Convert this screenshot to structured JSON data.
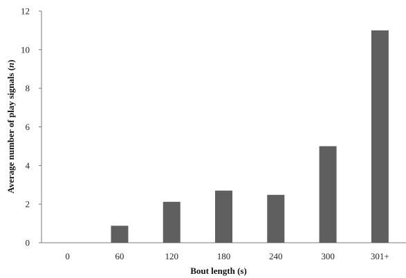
{
  "chart_data": {
    "type": "bar",
    "categories": [
      "0",
      "60",
      "120",
      "180",
      "240",
      "300",
      "301+"
    ],
    "values": [
      0,
      0.88,
      2.12,
      2.7,
      2.48,
      5.0,
      11.0
    ],
    "xlabel": "Bout length (s)",
    "ylabel_main": "Average number of play signals (",
    "ylabel_italic": "n",
    "ylabel_end": ")",
    "ylim": [
      0,
      12
    ],
    "yticks": [
      "0",
      "2",
      "4",
      "6",
      "8",
      "10",
      "12"
    ],
    "bar_color": "#5f5f5f",
    "grid": false,
    "legend": "none"
  }
}
